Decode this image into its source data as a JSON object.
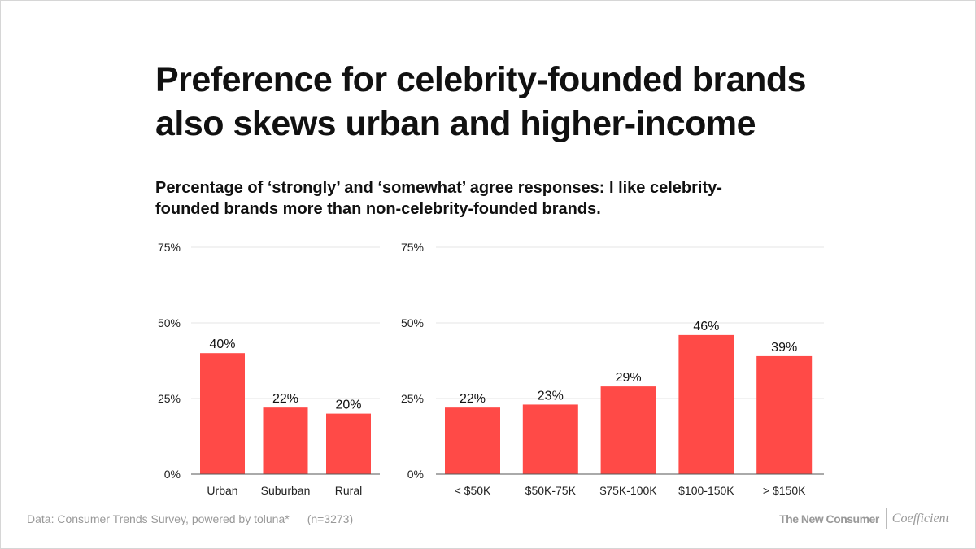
{
  "title_line1": "Preference for celebrity-founded brands",
  "title_line2": "also skews urban and higher-income",
  "subtitle_line1": "Percentage of ‘strongly’ and ‘somewhat’ agree responses: I like celebrity-",
  "subtitle_line2": "founded brands more than non-celebrity-founded brands.",
  "footer": {
    "source": "Data: Consumer Trends Survey, powered by toluna*",
    "n": "(n=3273)",
    "brand1": "The New Consumer",
    "brand2": "Coefficient"
  },
  "colors": {
    "bar": "#ff4a47",
    "grid": "#e6e6e6",
    "axis": "#555555"
  },
  "chart_data": [
    {
      "type": "bar",
      "categories": [
        "Urban",
        "Suburban",
        "Rural"
      ],
      "values": [
        40,
        22,
        20
      ],
      "labels": [
        "40%",
        "22%",
        "20%"
      ],
      "ylim": [
        0,
        75
      ],
      "yticks": [
        "0%",
        "25%",
        "50%",
        "75%"
      ],
      "grid": true
    },
    {
      "type": "bar",
      "categories": [
        "< $50K",
        "$50K-75K",
        "$75K-100K",
        "$100-150K",
        "> $150K"
      ],
      "values": [
        22,
        23,
        29,
        46,
        39
      ],
      "labels": [
        "22%",
        "23%",
        "29%",
        "46%",
        "39%"
      ],
      "ylim": [
        0,
        75
      ],
      "yticks": [
        "0%",
        "25%",
        "50%",
        "75%"
      ],
      "grid": true
    }
  ]
}
